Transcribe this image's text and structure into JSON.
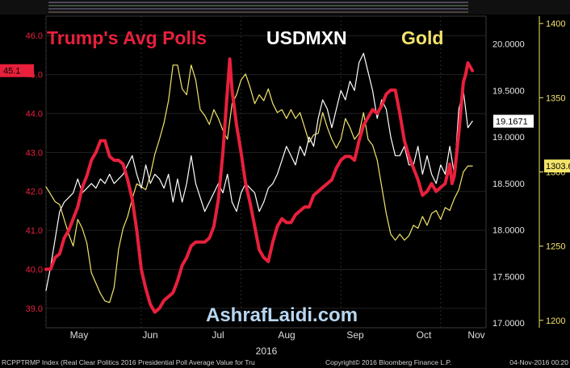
{
  "chart_data": {
    "type": "line",
    "titles": {
      "polls": "Trump's Avg Polls",
      "fx": "USDMXN",
      "gold": "Gold"
    },
    "watermark": "AshrafLaidi.com",
    "x_months": [
      "May",
      "Jun",
      "Jul",
      "Aug",
      "Sep",
      "Oct",
      "Nov"
    ],
    "x_year": "2016",
    "left_axis": {
      "ticks": [
        "46.0",
        "45.0",
        "44.0",
        "43.0",
        "42.0",
        "41.0",
        "40.0",
        "39.0"
      ],
      "min": 38.5,
      "max": 46.5,
      "last_label": "45.1"
    },
    "mid_axis": {
      "ticks": [
        "20.0000",
        "19.5000",
        "19.0000",
        "18.5000",
        "18.0000",
        "17.5000",
        "17.0000"
      ],
      "min": 16.95,
      "max": 20.3,
      "last_label": "19.1671"
    },
    "right_axis": {
      "ticks": [
        "1400",
        "1350",
        "1300",
        "1250",
        "1200"
      ],
      "min": 1195,
      "max": 1405,
      "last_label": "1303.6"
    },
    "colors": {
      "polls": "#e8203c",
      "fx": "#ffffff",
      "gold": "#f3e46a",
      "left_axis": "#e8203c",
      "right_axis": "#f3e46a"
    },
    "series": [
      {
        "name": "Trump's Avg Polls",
        "axis": "left",
        "points": [
          [
            0,
            40.0
          ],
          [
            2,
            40.0
          ],
          [
            4,
            40.3
          ],
          [
            6,
            40.4
          ],
          [
            8,
            40.8
          ],
          [
            10,
            41.0
          ],
          [
            12,
            41.3
          ],
          [
            14,
            41.6
          ],
          [
            16,
            42.1
          ],
          [
            18,
            42.4
          ],
          [
            20,
            42.8
          ],
          [
            22,
            43.0
          ],
          [
            24,
            43.3
          ],
          [
            26,
            43.3
          ],
          [
            28,
            42.9
          ],
          [
            30,
            42.8
          ],
          [
            32,
            42.8
          ],
          [
            34,
            42.7
          ],
          [
            36,
            42.3
          ],
          [
            38,
            41.8
          ],
          [
            40,
            41.0
          ],
          [
            42,
            40.0
          ],
          [
            44,
            39.5
          ],
          [
            46,
            39.1
          ],
          [
            48,
            38.9
          ],
          [
            50,
            39.0
          ],
          [
            52,
            39.2
          ],
          [
            54,
            39.3
          ],
          [
            56,
            39.4
          ],
          [
            58,
            39.7
          ],
          [
            60,
            40.1
          ],
          [
            62,
            40.3
          ],
          [
            64,
            40.6
          ],
          [
            66,
            40.7
          ],
          [
            68,
            40.7
          ],
          [
            70,
            40.7
          ],
          [
            72,
            40.8
          ],
          [
            74,
            41.1
          ],
          [
            76,
            41.8
          ],
          [
            78,
            43.0
          ],
          [
            80,
            44.6
          ],
          [
            81,
            45.4
          ],
          [
            82,
            44.6
          ],
          [
            84,
            43.7
          ],
          [
            86,
            43.0
          ],
          [
            88,
            42.2
          ],
          [
            90,
            41.7
          ],
          [
            92,
            41.1
          ],
          [
            94,
            40.5
          ],
          [
            96,
            40.3
          ],
          [
            98,
            40.2
          ],
          [
            100,
            40.7
          ],
          [
            102,
            41.1
          ],
          [
            104,
            41.3
          ],
          [
            106,
            41.2
          ],
          [
            108,
            41.2
          ],
          [
            110,
            41.4
          ],
          [
            112,
            41.5
          ],
          [
            114,
            41.6
          ],
          [
            116,
            41.6
          ],
          [
            118,
            41.9
          ],
          [
            120,
            42.0
          ],
          [
            122,
            42.1
          ],
          [
            124,
            42.2
          ],
          [
            126,
            42.3
          ],
          [
            128,
            42.6
          ],
          [
            130,
            42.8
          ],
          [
            132,
            42.9
          ],
          [
            134,
            42.9
          ],
          [
            136,
            42.8
          ],
          [
            138,
            43.3
          ],
          [
            140,
            43.7
          ],
          [
            142,
            43.9
          ],
          [
            144,
            44.1
          ],
          [
            146,
            44.0
          ],
          [
            148,
            44.2
          ],
          [
            150,
            44.5
          ],
          [
            152,
            44.6
          ],
          [
            154,
            44.6
          ],
          [
            156,
            44.0
          ],
          [
            158,
            43.3
          ],
          [
            160,
            42.9
          ],
          [
            162,
            42.6
          ],
          [
            164,
            42.3
          ],
          [
            166,
            41.9
          ],
          [
            168,
            42.0
          ],
          [
            170,
            42.2
          ],
          [
            172,
            42.0
          ],
          [
            174,
            42.1
          ],
          [
            176,
            42.2
          ],
          [
            178,
            42.7
          ],
          [
            179,
            42.2
          ],
          [
            180,
            42.4
          ],
          [
            182,
            43.5
          ],
          [
            184,
            44.8
          ],
          [
            185,
            45.0
          ],
          [
            186,
            45.3
          ],
          [
            187,
            45.2
          ],
          [
            188,
            45.1
          ]
        ]
      },
      {
        "name": "USDMXN",
        "axis": "mid",
        "points": [
          [
            0,
            17.35
          ],
          [
            2,
            17.6
          ],
          [
            4,
            17.9
          ],
          [
            6,
            18.2
          ],
          [
            8,
            18.3
          ],
          [
            10,
            18.35
          ],
          [
            12,
            18.4
          ],
          [
            14,
            18.55
          ],
          [
            16,
            18.4
          ],
          [
            18,
            18.45
          ],
          [
            20,
            18.5
          ],
          [
            22,
            18.45
          ],
          [
            24,
            18.55
          ],
          [
            26,
            18.5
          ],
          [
            28,
            18.6
          ],
          [
            30,
            18.5
          ],
          [
            32,
            18.55
          ],
          [
            34,
            18.6
          ],
          [
            36,
            18.7
          ],
          [
            38,
            18.8
          ],
          [
            40,
            18.6
          ],
          [
            42,
            18.45
          ],
          [
            44,
            18.7
          ],
          [
            46,
            18.5
          ],
          [
            48,
            18.6
          ],
          [
            50,
            18.55
          ],
          [
            52,
            18.45
          ],
          [
            54,
            18.6
          ],
          [
            56,
            18.3
          ],
          [
            58,
            18.55
          ],
          [
            60,
            18.3
          ],
          [
            62,
            18.5
          ],
          [
            64,
            18.8
          ],
          [
            66,
            18.5
          ],
          [
            68,
            18.35
          ],
          [
            70,
            18.2
          ],
          [
            72,
            18.3
          ],
          [
            74,
            18.4
          ],
          [
            76,
            18.5
          ],
          [
            78,
            18.4
          ],
          [
            80,
            18.6
          ],
          [
            82,
            18.3
          ],
          [
            84,
            18.2
          ],
          [
            86,
            18.4
          ],
          [
            88,
            18.5
          ],
          [
            90,
            18.45
          ],
          [
            92,
            18.4
          ],
          [
            94,
            18.2
          ],
          [
            96,
            18.3
          ],
          [
            98,
            18.45
          ],
          [
            100,
            18.5
          ],
          [
            102,
            18.6
          ],
          [
            104,
            18.75
          ],
          [
            106,
            18.9
          ],
          [
            108,
            18.8
          ],
          [
            110,
            18.7
          ],
          [
            112,
            18.9
          ],
          [
            114,
            18.8
          ],
          [
            116,
            19.0
          ],
          [
            118,
            18.9
          ],
          [
            120,
            19.2
          ],
          [
            122,
            19.4
          ],
          [
            124,
            19.3
          ],
          [
            126,
            19.1
          ],
          [
            128,
            19.3
          ],
          [
            130,
            19.5
          ],
          [
            132,
            19.4
          ],
          [
            134,
            19.6
          ],
          [
            136,
            19.5
          ],
          [
            138,
            19.8
          ],
          [
            140,
            19.9
          ],
          [
            142,
            19.7
          ],
          [
            144,
            19.5
          ],
          [
            146,
            19.2
          ],
          [
            148,
            19.4
          ],
          [
            150,
            19.3
          ],
          [
            152,
            19.0
          ],
          [
            154,
            18.8
          ],
          [
            156,
            18.8
          ],
          [
            158,
            18.9
          ],
          [
            160,
            18.7
          ],
          [
            162,
            18.7
          ],
          [
            164,
            18.9
          ],
          [
            166,
            18.6
          ],
          [
            168,
            18.8
          ],
          [
            170,
            18.6
          ],
          [
            172,
            18.5
          ],
          [
            174,
            18.7
          ],
          [
            176,
            18.6
          ],
          [
            178,
            18.9
          ],
          [
            180,
            18.6
          ],
          [
            182,
            19.3
          ],
          [
            184,
            19.5
          ],
          [
            186,
            19.1
          ],
          [
            188,
            19.17
          ]
        ]
      },
      {
        "name": "Gold",
        "axis": "right",
        "points": [
          [
            0,
            1290
          ],
          [
            2,
            1285
          ],
          [
            4,
            1280
          ],
          [
            6,
            1278
          ],
          [
            8,
            1268
          ],
          [
            10,
            1258
          ],
          [
            12,
            1250
          ],
          [
            14,
            1268
          ],
          [
            16,
            1262
          ],
          [
            18,
            1252
          ],
          [
            20,
            1232
          ],
          [
            22,
            1225
          ],
          [
            24,
            1218
          ],
          [
            26,
            1213
          ],
          [
            28,
            1212
          ],
          [
            30,
            1222
          ],
          [
            32,
            1248
          ],
          [
            34,
            1262
          ],
          [
            36,
            1270
          ],
          [
            38,
            1282
          ],
          [
            40,
            1292
          ],
          [
            42,
            1290
          ],
          [
            44,
            1288
          ],
          [
            46,
            1298
          ],
          [
            48,
            1312
          ],
          [
            50,
            1322
          ],
          [
            52,
            1333
          ],
          [
            54,
            1348
          ],
          [
            56,
            1372
          ],
          [
            58,
            1372
          ],
          [
            60,
            1356
          ],
          [
            62,
            1352
          ],
          [
            64,
            1372
          ],
          [
            66,
            1362
          ],
          [
            68,
            1342
          ],
          [
            70,
            1338
          ],
          [
            72,
            1332
          ],
          [
            74,
            1342
          ],
          [
            76,
            1336
          ],
          [
            78,
            1328
          ],
          [
            80,
            1322
          ],
          [
            82,
            1346
          ],
          [
            84,
            1352
          ],
          [
            86,
            1362
          ],
          [
            88,
            1366
          ],
          [
            90,
            1357
          ],
          [
            92,
            1346
          ],
          [
            94,
            1352
          ],
          [
            96,
            1348
          ],
          [
            98,
            1356
          ],
          [
            100,
            1346
          ],
          [
            102,
            1340
          ],
          [
            104,
            1342
          ],
          [
            106,
            1336
          ],
          [
            108,
            1342
          ],
          [
            110,
            1336
          ],
          [
            112,
            1340
          ],
          [
            114,
            1330
          ],
          [
            116,
            1320
          ],
          [
            118,
            1325
          ],
          [
            120,
            1326
          ],
          [
            122,
            1340
          ],
          [
            124,
            1330
          ],
          [
            126,
            1322
          ],
          [
            128,
            1316
          ],
          [
            130,
            1322
          ],
          [
            132,
            1336
          ],
          [
            134,
            1330
          ],
          [
            136,
            1322
          ],
          [
            138,
            1326
          ],
          [
            140,
            1340
          ],
          [
            142,
            1322
          ],
          [
            144,
            1318
          ],
          [
            146,
            1308
          ],
          [
            148,
            1290
          ],
          [
            150,
            1272
          ],
          [
            152,
            1258
          ],
          [
            154,
            1254
          ],
          [
            156,
            1258
          ],
          [
            158,
            1254
          ],
          [
            160,
            1257
          ],
          [
            162,
            1264
          ],
          [
            164,
            1262
          ],
          [
            166,
            1270
          ],
          [
            168,
            1264
          ],
          [
            170,
            1272
          ],
          [
            172,
            1274
          ],
          [
            174,
            1268
          ],
          [
            176,
            1276
          ],
          [
            178,
            1274
          ],
          [
            180,
            1282
          ],
          [
            182,
            1288
          ],
          [
            184,
            1300
          ],
          [
            186,
            1304
          ],
          [
            188,
            1304
          ]
        ]
      }
    ]
  },
  "footer": {
    "left": "RCPPTRMP Index (Real Clear Politics 2016 Presidential Poll Average Value for Tru",
    "middle": "Copyright© 2016 Bloomberg Finance L.P.",
    "right": "04-Nov-2016 00:20"
  }
}
